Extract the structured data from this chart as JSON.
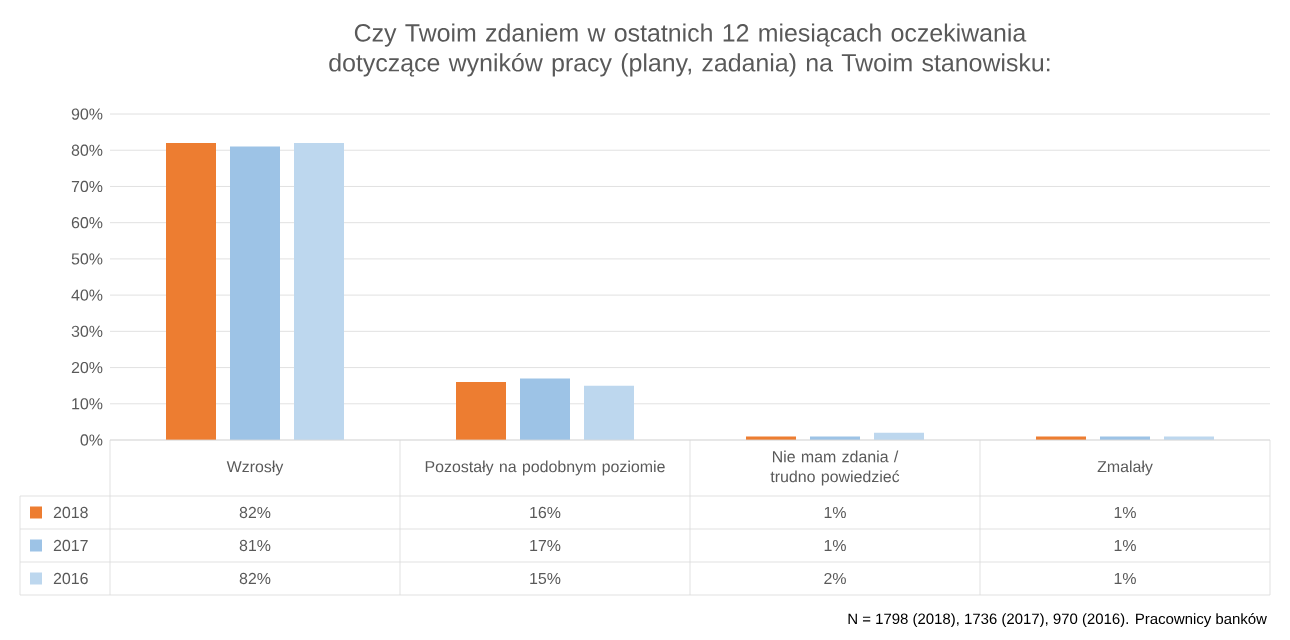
{
  "chart_data": {
    "type": "bar",
    "title": "Czy Twoim zdaniem w ostatnich 12 miesiącach oczekiwania dotyczące wyników pracy (plany, zadania) na Twoim stanowisku:",
    "categories": [
      "Wzrosły",
      "Pozostały na podobnym poziomie",
      "Nie mam zdania / trudno powiedzieć",
      "Zmalały"
    ],
    "series": [
      {
        "name": "2018",
        "color": "#ed7d31",
        "values": [
          82,
          16,
          1,
          1
        ],
        "value_labels": [
          "82%",
          "16%",
          "1%",
          "1%"
        ]
      },
      {
        "name": "2017",
        "color": "#9dc3e6",
        "values": [
          81,
          17,
          1,
          1
        ],
        "value_labels": [
          "81%",
          "17%",
          "1%",
          "1%"
        ]
      },
      {
        "name": "2016",
        "color": "#bdd7ee",
        "values": [
          82,
          15,
          2,
          1
        ],
        "value_labels": [
          "82%",
          "15%",
          "2%",
          "1%"
        ]
      }
    ],
    "ylim": [
      0,
      90
    ],
    "yticks": [
      {
        "value": 0,
        "label": "0%"
      },
      {
        "value": 10,
        "label": "10%"
      },
      {
        "value": 20,
        "label": "20%"
      },
      {
        "value": 30,
        "label": "30%"
      },
      {
        "value": 40,
        "label": "40%"
      },
      {
        "value": 50,
        "label": "50%"
      },
      {
        "value": 60,
        "label": "60%"
      },
      {
        "value": 70,
        "label": "70%"
      },
      {
        "value": 80,
        "label": "80%"
      },
      {
        "value": 90,
        "label": "90%"
      }
    ],
    "grid": "y",
    "legend": "bottom",
    "annotations": [
      "N = 1798 (2018), 1736 (2017), 970 (2016). Pracownicy banków"
    ]
  }
}
